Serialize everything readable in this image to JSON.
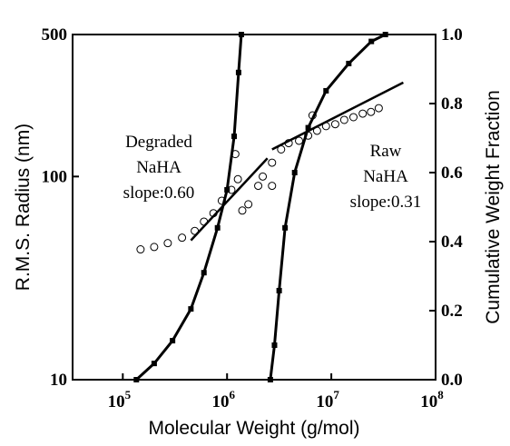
{
  "chart_data": {
    "type": "scatter",
    "x_label": "Molecular Weight (g/mol)",
    "y_label": "R.M.S. Radius (nm)",
    "y2_label": "Cumulative Weight Fraction",
    "xscale": "log",
    "yscale": "log",
    "xlim": [
      33000,
      100000000
    ],
    "xticks": [
      {
        "value": 100000,
        "label": "10",
        "exp": "5"
      },
      {
        "value": 1000000,
        "label": "10",
        "exp": "6"
      },
      {
        "value": 10000000,
        "label": "10",
        "exp": "7"
      },
      {
        "value": 100000000,
        "label": "10",
        "exp": "8"
      }
    ],
    "ylim": [
      10,
      500
    ],
    "yticks": [
      10,
      100,
      500
    ],
    "y2lim": [
      0,
      1
    ],
    "y2ticks": [
      {
        "value": 0,
        "label": "0.0"
      },
      0.2,
      0.4,
      0.6,
      0.8,
      {
        "value": 1,
        "label": "1.0"
      }
    ],
    "series": [
      {
        "marker": "circle",
        "color": "#000000",
        "x": [
          148000,
          200000,
          270000,
          370000,
          490000,
          600000,
          740000,
          890000,
          1100000,
          1270000,
          1200000,
          1400000,
          1600000,
          1990000,
          2200000,
          2700000,
          3300000,
          3900000,
          4900000,
          6000000,
          7300000,
          8900000,
          10900000,
          13300000,
          16300000,
          20000000,
          24000000,
          28500000,
          6600000,
          2700000
        ],
        "values": [
          43.8,
          45,
          47,
          50,
          54,
          60,
          66,
          76,
          86,
          97,
          129,
          68,
          73,
          90,
          100,
          117,
          136,
          146,
          150,
          159,
          168,
          177,
          181,
          190,
          196,
          204,
          208,
          217,
          200,
          90
        ]
      },
      {
        "marker": "square",
        "color": "#000000",
        "axis": "y2",
        "x": [
          135000,
          200000,
          300000,
          450000,
          600000,
          810000,
          1000000,
          1170000,
          1290000,
          1370000
        ],
        "values": [
          0,
          0.047,
          0.113,
          0.205,
          0.31,
          0.44,
          0.55,
          0.705,
          0.89,
          1.0
        ]
      },
      {
        "marker": "square",
        "color": "#000000",
        "axis": "y2",
        "x": [
          2600000,
          2850000,
          3160000,
          3600000,
          4450000,
          6000000,
          8900000,
          14700000,
          24200000,
          33000000
        ],
        "values": [
          0,
          0.1,
          0.258,
          0.44,
          0.6,
          0.73,
          0.837,
          0.916,
          0.98,
          1.0
        ]
      },
      {
        "marker": "none",
        "color": "#000000",
        "x": [
          450000,
          2440000
        ],
        "values": [
          48.5,
          123
        ]
      },
      {
        "marker": "none",
        "color": "#000000",
        "x": [
          2700000,
          49000000
        ],
        "values": [
          136,
          290
        ]
      }
    ],
    "annotations": [
      {
        "lines": [
          "Degraded",
          "NaHA",
          "slope:0.60"
        ]
      },
      {
        "lines": [
          "Raw",
          "NaHA",
          "slope:0.31"
        ]
      }
    ]
  }
}
